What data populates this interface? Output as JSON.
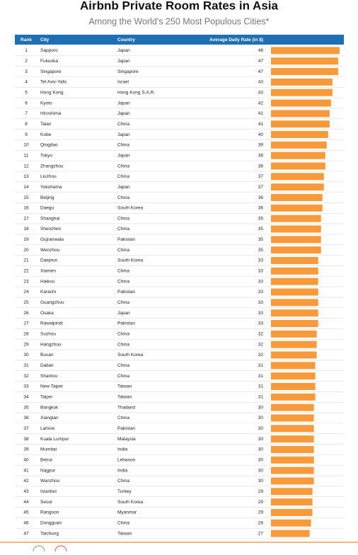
{
  "chart_data": {
    "type": "table-bar",
    "title": "Airbnb Private Room Rates in Asia",
    "subtitle": "Among the World's 250 Most Populous Cities*",
    "columns": [
      "Rank",
      "City",
      "Country",
      "Average Daily Rate (in $)"
    ],
    "color": "#f89a3a",
    "header_color": "#1f6fb4",
    "ranks": [
      1,
      2,
      3,
      4,
      5,
      6,
      7,
      8,
      9,
      10,
      11,
      12,
      13,
      14,
      15,
      16,
      17,
      18,
      19,
      20,
      21,
      22,
      23,
      24,
      25,
      26,
      27,
      28,
      29,
      30,
      31,
      32,
      33,
      34,
      35,
      36,
      37,
      38,
      39,
      40,
      41,
      42,
      43,
      44,
      45,
      46,
      47
    ],
    "categories": [
      "Sapporo",
      "Fukuoka",
      "Singapore",
      "Tel Aviv-Yafo",
      "Hong Kong",
      "Kyoto",
      "Hiroshima",
      "Taian",
      "Kobe",
      "Qingdao",
      "Tokyo",
      "Zhangzhou",
      "Liuzhou",
      "Yokohama",
      "Beijing",
      "Daegu",
      "Shanghai",
      "Shenzhen",
      "Gujranwala",
      "Wenzhou",
      "Daejeon",
      "Xiamen",
      "Haikou",
      "Karachi",
      "Guangzhou",
      "Osaka",
      "Rawalpindi",
      "Suzhou",
      "Hangzhou",
      "Busan",
      "Dalian",
      "Shantou",
      "New Taipei",
      "Taipei",
      "Bangkok",
      "Xiangtan",
      "Lahore",
      "Kuala Lumpur",
      "Mumbai",
      "Beirut",
      "Nagpur",
      "Wanzhou",
      "Istanbul",
      "Seoul",
      "Rangoon",
      "Dongguan",
      "Taichung"
    ],
    "countries": [
      "Japan",
      "Japan",
      "Singapore",
      "Israel",
      "Hong Kong S.A.R.",
      "Japan",
      "Japan",
      "China",
      "Japan",
      "China",
      "Japan",
      "China",
      "China",
      "Japan",
      "China",
      "South Korea",
      "China",
      "China",
      "Pakistan",
      "China",
      "South Korea",
      "China",
      "China",
      "Pakistan",
      "China",
      "Japan",
      "Pakistan",
      "China",
      "China",
      "South Korea",
      "China",
      "China",
      "Taiwan",
      "Taiwan",
      "Thailand",
      "China",
      "Pakistan",
      "Malaysia",
      "India",
      "Lebanon",
      "India",
      "China",
      "Turkey",
      "South Korea",
      "Myanmar",
      "China",
      "Taiwan"
    ],
    "values": [
      48,
      47,
      47,
      43,
      43,
      42,
      41,
      41,
      40,
      39,
      38,
      38,
      37,
      37,
      36,
      36,
      35,
      35,
      35,
      35,
      33,
      33,
      33,
      33,
      33,
      33,
      33,
      32,
      32,
      32,
      31,
      31,
      31,
      31,
      30,
      30,
      30,
      30,
      30,
      30,
      30,
      30,
      29,
      29,
      29,
      28,
      27
    ]
  }
}
